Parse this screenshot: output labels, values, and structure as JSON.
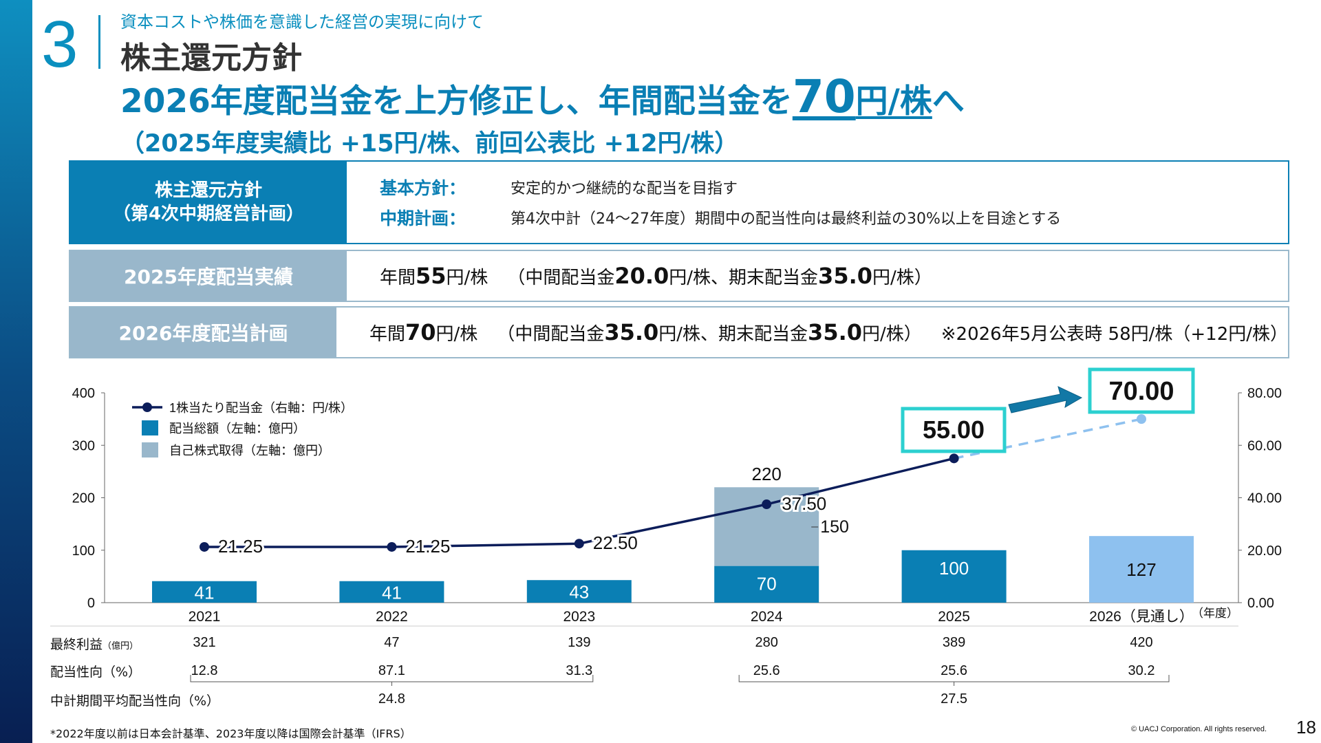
{
  "section": {
    "number": "3",
    "subtitle": "資本コストや株価を意識した経営の実現に向けて",
    "title": "株主還元方針"
  },
  "headline": {
    "part1": "2026年度配当金を上方修正し、年間配当金を",
    "amount": "70",
    "unit": "円/株",
    "suffix": "へ",
    "sub": "（2025年度実績比 +15円/株、前回公表比 +12円/株）"
  },
  "policy": {
    "label_line1": "株主還元方針",
    "label_line2": "（第4次中期経営計画）",
    "basic_key": "基本方針：",
    "basic_value": "安定的かつ継続的な配当を目指す",
    "mid_key": "中期計画：",
    "mid_value": "第4次中計（24～27年度）期間中の配当性向は最終利益の30%以上を目途とする"
  },
  "results_2025": {
    "label": "2025年度配当実績",
    "annual_pre": "年間",
    "annual_value": "55",
    "annual_unit": "円/株",
    "detail_pre": "（中間配当金",
    "interim_value": "20.0",
    "detail_mid": "円/株、期末配当金",
    "yearend_value": "35.0",
    "detail_post": "円/株）"
  },
  "plan_2026": {
    "label": "2026年度配当計画",
    "annual_pre": "年間",
    "annual_value": "70",
    "annual_unit": "円/株",
    "detail_pre": "（中間配当金",
    "interim_value": "35.0",
    "detail_mid": "円/株、期末配当金",
    "yearend_value": "35.0",
    "detail_post": "円/株）",
    "note": "※2026年5月公表時 58円/株（+12円/株）"
  },
  "chart_data": {
    "type": "bar",
    "categories": [
      "2021",
      "2022",
      "2023",
      "2024",
      "2025",
      "2026（見通し）"
    ],
    "x_unit": "（年度）",
    "left_axis": {
      "ylim": [
        0,
        400
      ],
      "ticks": [
        "0",
        "100",
        "200",
        "300",
        "400"
      ]
    },
    "right_axis": {
      "ylim": [
        0,
        80
      ],
      "ticks": [
        "0.00",
        "20.00",
        "40.00",
        "60.00",
        "80.00"
      ]
    },
    "legend": [
      "1株当たり配当金（右軸：円/株）",
      "配当総額（左軸：億円）",
      "自己株式取得（左軸：億円）"
    ],
    "series": [
      {
        "name": "配当総額（左軸：億円）",
        "values": [
          41,
          41,
          43,
          70,
          100,
          127
        ],
        "labels": [
          "41",
          "41",
          "43",
          "70",
          "100",
          "127"
        ],
        "color": "#0a7fb4",
        "forecast_color": "#8ec1ef"
      },
      {
        "name": "自己株式取得（左軸：億円）",
        "values": [
          0,
          0,
          0,
          150,
          0,
          0
        ],
        "labels": [
          "",
          "",
          "",
          "150",
          "",
          ""
        ],
        "color": "#99b7cb"
      },
      {
        "name": "1株当たり配当金（右軸：円/株）",
        "axis": "right",
        "values": [
          21.25,
          21.25,
          22.5,
          37.5,
          55.0,
          70.0
        ],
        "labels": [
          "21.25",
          "21.25",
          "22.50",
          "37.50",
          "55.00",
          "70.00"
        ],
        "color": "#0c1d5a",
        "forecast_color": "#8ec1ef"
      }
    ],
    "stack_totals": {
      "2024": "220"
    },
    "callouts": [
      "55.00",
      "70.00"
    ],
    "legend_position": "top-left"
  },
  "table": {
    "net_income_label": "最終利益",
    "net_income_unit": "（億円）",
    "net_income": [
      "321",
      "47",
      "139",
      "280",
      "389",
      "420"
    ],
    "payout_label": "配当性向（%）",
    "payout": [
      "12.8",
      "87.1",
      "31.3",
      "25.6",
      "25.6",
      "30.2"
    ],
    "avg_label": "中計期間平均配当性向（%）",
    "avg": [
      "24.8",
      "27.5"
    ]
  },
  "footnote": "*2022年度以前は日本会計基準、2023年度以降は国際会計基準（IFRS）",
  "copyright": "© UACJ Corporation. All rights reserved.",
  "page_number": "18"
}
